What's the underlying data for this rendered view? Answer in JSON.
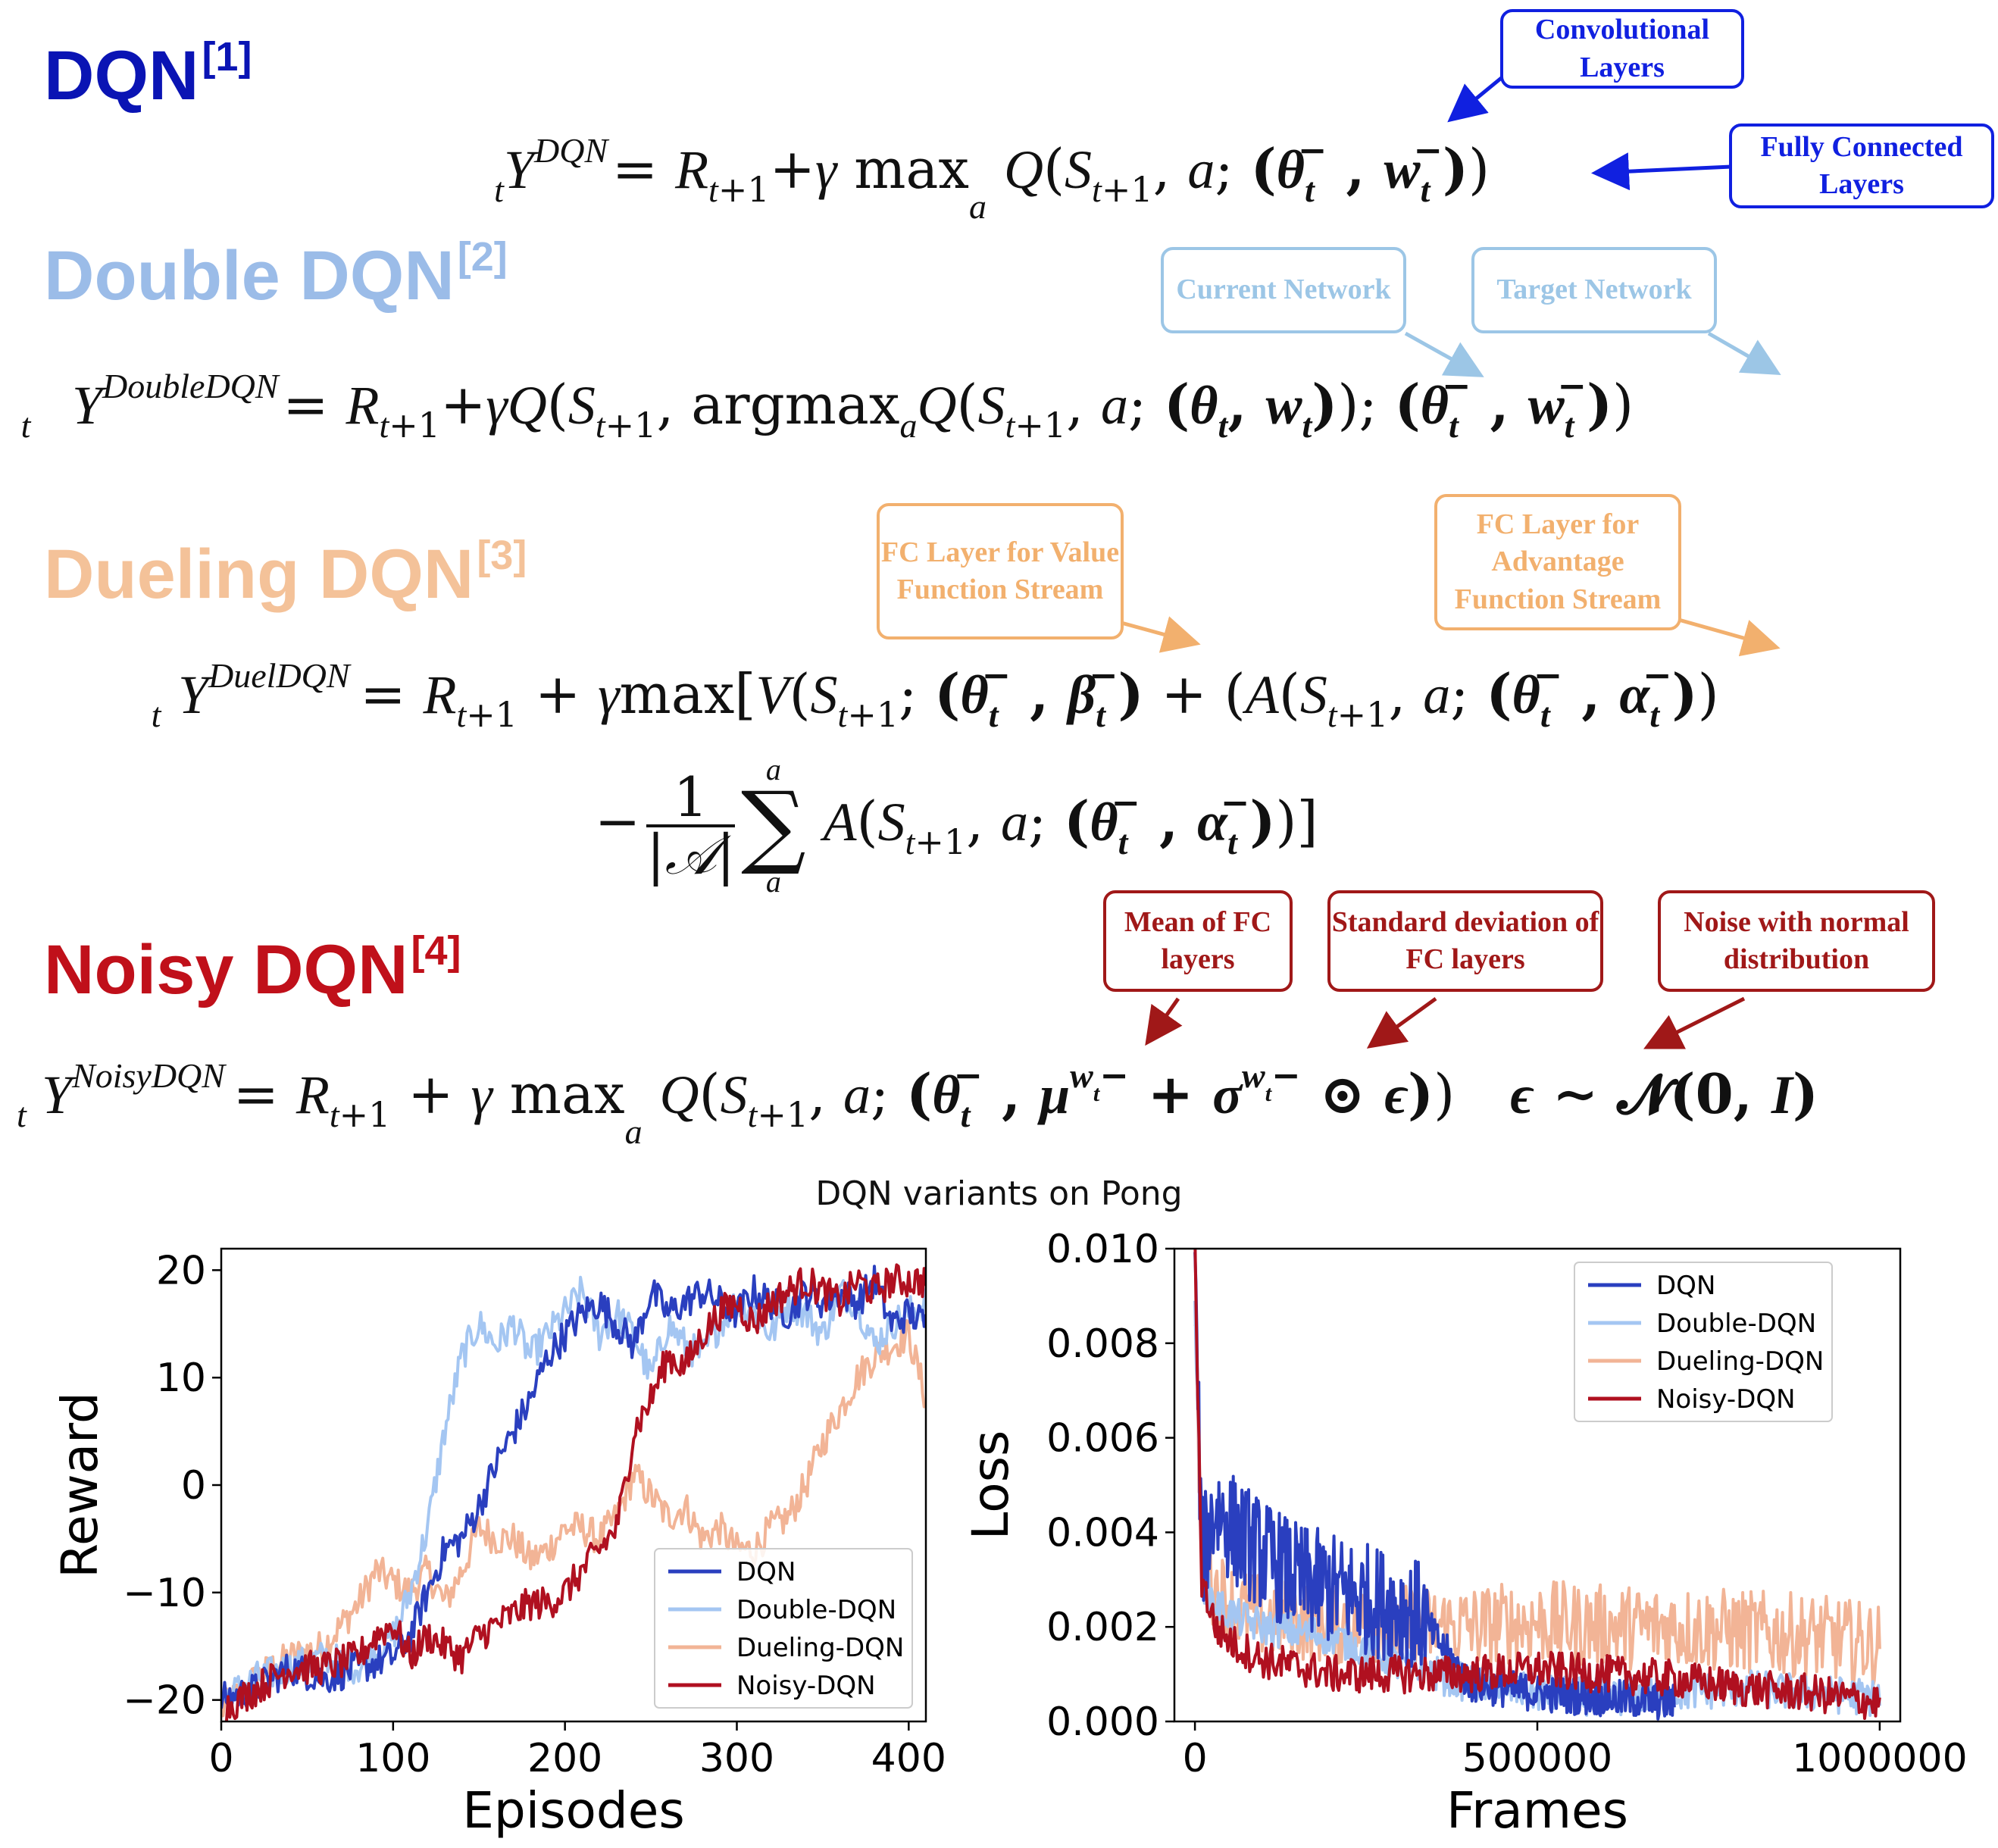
{
  "colors": {
    "dqn": "#0a14b4",
    "double": "#9bbce8",
    "dueling": "#f4c299",
    "noisy": "#c0101a",
    "callout_blue": "#1020e0",
    "callout_lightblue": "#9cc6e6",
    "callout_orange": "#f2b06e",
    "callout_red": "#a01818"
  },
  "sections": {
    "dqn": {
      "title": "DQN",
      "ref": "[1]",
      "equation": {
        "lhs": "Y",
        "lhs_sub": "t",
        "lhs_sup": "DQN",
        "rhs": "= R_{t+1} + γ max_a Q(S_{t+1}, a; (θ_t^−, w_t^−))"
      },
      "callouts": [
        "Convolutional Layers",
        "Fully Connected Layers"
      ]
    },
    "double": {
      "title": "Double DQN",
      "ref": "[2]",
      "equation": {
        "lhs": "Y",
        "lhs_sub": "t",
        "lhs_sup": "DoubleDQN",
        "rhs": "= R_{t+1} + γ Q(S_{t+1}, argmax_a Q(S_{t+1}, a; (θ_t, w_t)); (θ_t^−, w_t^−))"
      },
      "callouts": [
        "Current Network",
        "Target Network"
      ]
    },
    "dueling": {
      "title": "Dueling DQN",
      "ref": "[3]",
      "equation": {
        "lhs": "Y",
        "lhs_sub": "t",
        "lhs_sup": "DuelDQN",
        "rhs": "= R_{t+1} + γ max^a [V(S_{t+1}; (θ_t^−, β_t^−)) + (A(S_{t+1}, a; (θ_t^−, α_t^−)) − 1/|A| Σ_a A(S_{t+1}, a; (θ_t^−, α_t^−))]"
      },
      "callouts": [
        "FC Layer for Value Function Stream",
        "FC Layer for Advantage Function Stream"
      ]
    },
    "noisy": {
      "title": "Noisy DQN",
      "ref": "[4]",
      "equation": {
        "lhs": "Y",
        "lhs_sub": "t",
        "lhs_sup": "NoisyDQN",
        "rhs": "= R_{t+1} + γ max_a Q(S_{t+1}, a; (θ_t^−, μ^{w_t^−} + σ^{w_t^−} ⊙ ϵ))    ϵ ∼ N(0, I)"
      },
      "callouts": [
        "Mean of FC layers",
        "Standard deviation of FC layers",
        "Noise with normal distribution"
      ]
    }
  },
  "chart_data": [
    {
      "type": "line",
      "title": "DQN variants on Pong",
      "xlabel": "Episodes",
      "ylabel": "Reward",
      "xlim": [
        0,
        410
      ],
      "ylim": [
        -22,
        22
      ],
      "xticks": [
        0,
        100,
        200,
        300,
        400
      ],
      "yticks": [
        -20,
        -10,
        0,
        10,
        20
      ],
      "legend": "lower-right",
      "series": [
        {
          "name": "DQN",
          "color": "#2a3fbf",
          "x": [
            0,
            20,
            40,
            60,
            80,
            100,
            110,
            120,
            130,
            140,
            150,
            160,
            170,
            180,
            190,
            200,
            210,
            220,
            230,
            240,
            250,
            260,
            270,
            280,
            290,
            300,
            310,
            320,
            330,
            340,
            350,
            360,
            370,
            380,
            390,
            400,
            410
          ],
          "y": [
            -20,
            -19,
            -17,
            -18,
            -17,
            -16,
            -14,
            -10,
            -6,
            -5,
            -2,
            2,
            5,
            8,
            12,
            14,
            16,
            17,
            15,
            13,
            18,
            16,
            17,
            18,
            17,
            16,
            18,
            17,
            16,
            18,
            17,
            18,
            17,
            19,
            15,
            16,
            15
          ]
        },
        {
          "name": "Double-DQN",
          "color": "#a4c6f2",
          "x": [
            0,
            20,
            40,
            60,
            80,
            100,
            110,
            120,
            130,
            140,
            150,
            160,
            170,
            180,
            190,
            200,
            210,
            220,
            230,
            240,
            250,
            260,
            270,
            280,
            290,
            300,
            310,
            320,
            330,
            340,
            350,
            360,
            370,
            380,
            390,
            400,
            410
          ],
          "y": [
            -20,
            -18,
            -17,
            -16,
            -17,
            -14,
            -10,
            -4,
            5,
            12,
            15,
            13,
            15,
            12,
            14,
            16,
            18,
            14,
            16,
            14,
            10,
            15,
            13,
            12,
            15,
            17,
            16,
            14,
            17,
            16,
            14,
            18,
            17,
            13,
            15,
            16,
            17
          ]
        },
        {
          "name": "Dueling-DQN",
          "color": "#f2b496",
          "x": [
            0,
            20,
            40,
            60,
            80,
            90,
            100,
            110,
            120,
            130,
            140,
            150,
            160,
            170,
            180,
            190,
            200,
            210,
            220,
            230,
            240,
            250,
            260,
            270,
            280,
            290,
            300,
            310,
            320,
            330,
            340,
            350,
            360,
            370,
            380,
            390,
            400,
            410
          ],
          "y": [
            -21,
            -18,
            -16,
            -15,
            -11,
            -8,
            -9,
            -10,
            -8,
            -11,
            -8,
            -4,
            -5,
            -5,
            -7,
            -6,
            -4,
            -4,
            -5,
            -3,
            1,
            -1,
            -3,
            -2,
            -5,
            -4,
            -6,
            -6,
            -4,
            -3,
            0,
            4,
            7,
            10,
            12,
            13,
            14,
            8
          ]
        },
        {
          "name": "Noisy-DQN",
          "color": "#b01020",
          "x": [
            0,
            20,
            40,
            60,
            80,
            90,
            100,
            110,
            120,
            130,
            140,
            150,
            160,
            170,
            180,
            190,
            200,
            210,
            220,
            230,
            235,
            240,
            250,
            260,
            270,
            280,
            290,
            300,
            310,
            320,
            330,
            340,
            350,
            360,
            370,
            380,
            390,
            400,
            410
          ],
          "y": [
            -21,
            -19,
            -17,
            -17,
            -16,
            -14,
            -13,
            -16,
            -14,
            -15,
            -16,
            -14,
            -13,
            -12,
            -11,
            -11,
            -10,
            -8,
            -6,
            -4,
            0,
            5,
            8,
            12,
            11,
            14,
            16,
            17,
            15,
            17,
            18,
            19,
            18,
            17,
            19,
            18,
            19,
            19,
            19
          ]
        }
      ]
    },
    {
      "type": "line",
      "title": "",
      "xlabel": "Frames",
      "ylabel": "Loss",
      "xlim": [
        -30000,
        1030000
      ],
      "ylim": [
        0,
        0.01
      ],
      "xticks": [
        0,
        500000,
        1000000
      ],
      "xtick_labels": [
        "0",
        "500000",
        "1000000"
      ],
      "yticks": [
        0.0,
        0.002,
        0.004,
        0.006,
        0.008,
        0.01
      ],
      "ytick_labels": [
        "0.000",
        "0.002",
        "0.004",
        "0.006",
        "0.008",
        "0.010"
      ],
      "legend": "top-right",
      "series": [
        {
          "name": "DQN",
          "color": "#2a3fbf",
          "x": [
            0,
            10000,
            30000,
            60000,
            100000,
            150000,
            200000,
            250000,
            300000,
            330000,
            400000,
            500000,
            600000,
            700000
          ],
          "y": [
            0.0095,
            0.0035,
            0.0045,
            0.004,
            0.0035,
            0.003,
            0.0028,
            0.0026,
            0.0024,
            0.0022,
            0.0008,
            0.0006,
            0.0005,
            0.0004
          ]
        },
        {
          "name": "Double-DQN",
          "color": "#a4c6f2",
          "x": [
            0,
            10000,
            30000,
            60000,
            100000,
            200000,
            300000,
            400000,
            500000,
            600000,
            700000,
            800000,
            900000,
            1000000
          ],
          "y": [
            0.009,
            0.003,
            0.0025,
            0.0022,
            0.002,
            0.0018,
            0.0012,
            0.0008,
            0.0006,
            0.0005,
            0.0006,
            0.0007,
            0.0006,
            0.0005
          ]
        },
        {
          "name": "Dueling-DQN",
          "color": "#f2b496",
          "x": [
            0,
            10000,
            30000,
            60000,
            100000,
            200000,
            300000,
            400000,
            500000,
            600000,
            700000,
            800000,
            900000,
            1000000
          ],
          "y": [
            0.0085,
            0.0035,
            0.0028,
            0.0024,
            0.0022,
            0.0021,
            0.002,
            0.002,
            0.0021,
            0.002,
            0.002,
            0.0019,
            0.0018,
            0.0016
          ]
        },
        {
          "name": "Noisy-DQN",
          "color": "#b01020",
          "x": [
            0,
            10000,
            30000,
            60000,
            100000,
            200000,
            300000,
            400000,
            500000,
            600000,
            700000,
            800000,
            900000,
            1000000
          ],
          "y": [
            0.01,
            0.003,
            0.002,
            0.0016,
            0.0013,
            0.001,
            0.001,
            0.001,
            0.0011,
            0.001,
            0.0009,
            0.0007,
            0.0006,
            0.0004
          ]
        }
      ]
    }
  ]
}
